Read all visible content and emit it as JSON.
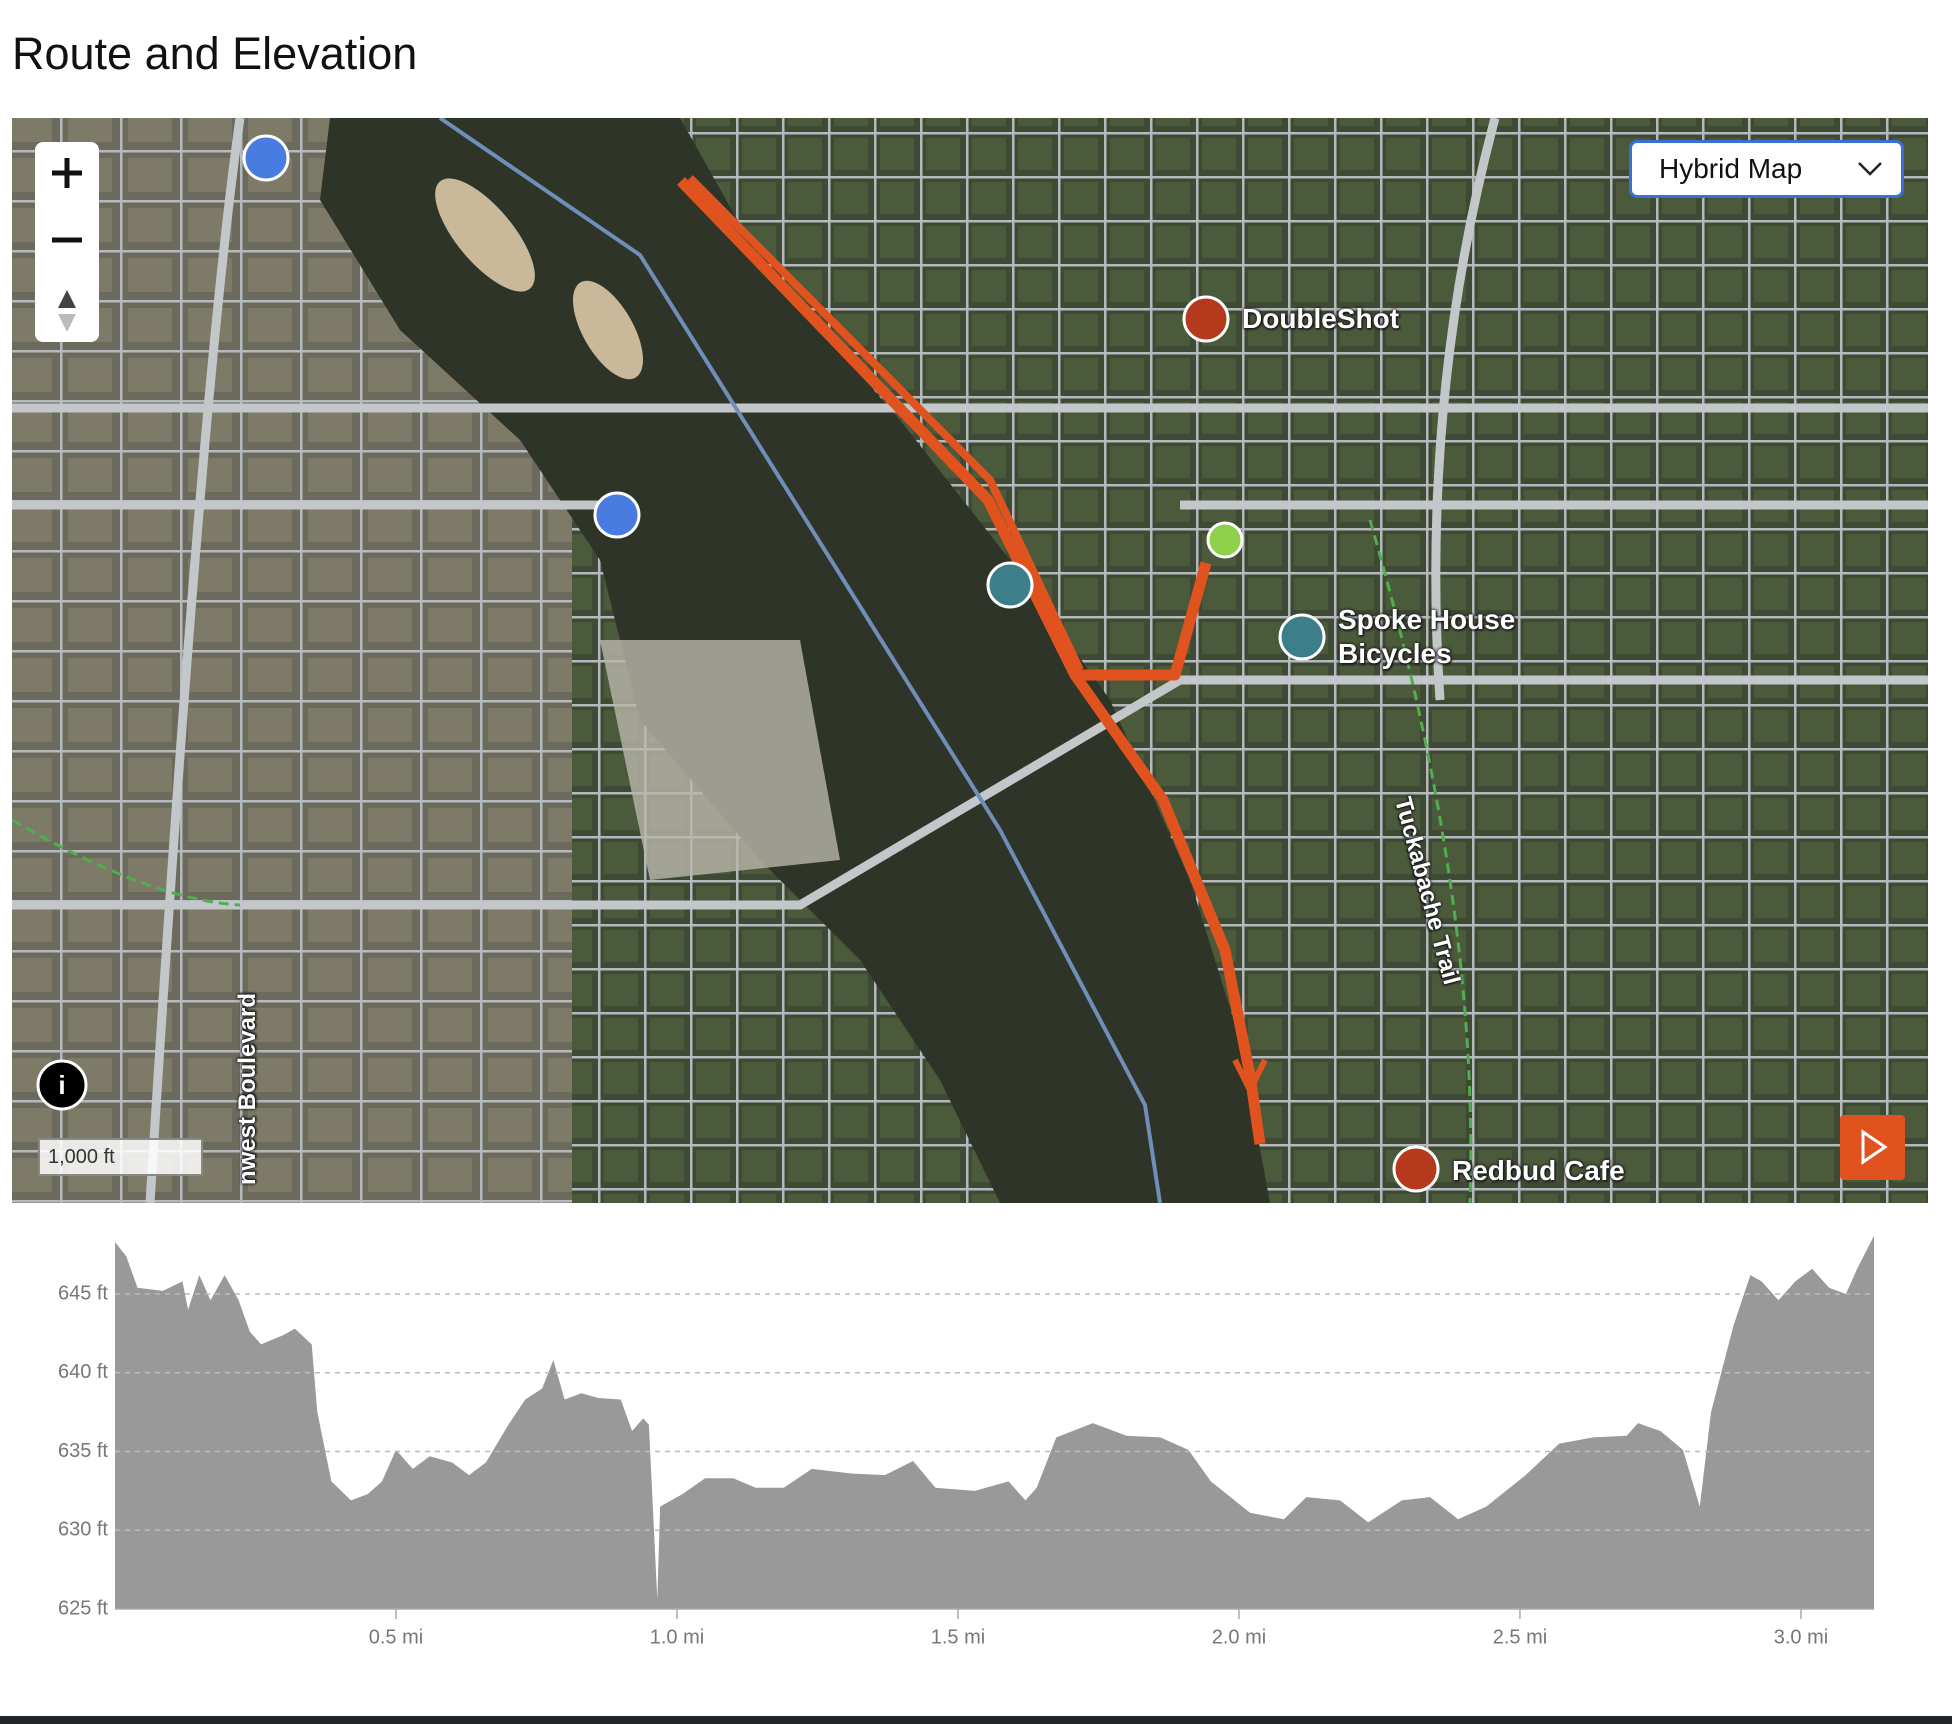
{
  "header": {
    "title": "Route and Elevation"
  },
  "map": {
    "map_type": "Hybrid Map",
    "scale": "1,000 ft",
    "places": [
      "DoubleShot",
      "Spoke House Bicycles",
      "Redbud Cafe"
    ],
    "streets": [
      "Tuckabache Trail",
      "nwest Boulevard"
    ]
  },
  "chart_data": {
    "type": "area",
    "color": "#999999",
    "x": [
      0,
      0.02,
      0.04,
      0.085,
      0.12,
      0.13,
      0.15,
      0.17,
      0.195,
      0.22,
      0.24,
      0.26,
      0.3,
      0.32,
      0.35,
      0.36,
      0.385,
      0.42,
      0.45,
      0.475,
      0.5,
      0.53,
      0.56,
      0.6,
      0.63,
      0.66,
      0.7,
      0.73,
      0.76,
      0.78,
      0.8,
      0.83,
      0.86,
      0.9,
      0.92,
      0.94,
      0.95,
      0.965,
      0.97,
      1.01,
      1.05,
      1.1,
      1.14,
      1.19,
      1.24,
      1.31,
      1.37,
      1.42,
      1.46,
      1.53,
      1.59,
      1.62,
      1.64,
      1.675,
      1.74,
      1.8,
      1.86,
      1.91,
      1.95,
      2.02,
      2.08,
      2.12,
      2.18,
      2.23,
      2.29,
      2.34,
      2.39,
      2.44,
      2.51,
      2.57,
      2.63,
      2.69,
      2.71,
      2.75,
      2.79,
      2.82,
      2.84,
      2.88,
      2.91,
      2.93,
      2.96,
      2.99,
      3.02,
      3.05,
      3.08,
      3.1,
      3.13
    ],
    "values": [
      648.3,
      647.4,
      645.4,
      645.2,
      645.8,
      644.0,
      646.2,
      644.6,
      646.2,
      644.6,
      642.6,
      641.8,
      642.4,
      642.8,
      641.8,
      637.5,
      633.1,
      631.9,
      632.3,
      633.1,
      635.1,
      633.9,
      634.7,
      634.3,
      633.5,
      634.3,
      636.7,
      638.3,
      639.0,
      640.8,
      638.3,
      638.7,
      638.4,
      638.3,
      636.3,
      637.1,
      636.7,
      625.6,
      631.5,
      632.3,
      633.3,
      633.3,
      632.7,
      632.7,
      633.9,
      633.6,
      633.5,
      634.4,
      632.7,
      632.5,
      633.1,
      631.9,
      632.7,
      635.9,
      636.8,
      636.0,
      635.9,
      635.1,
      633.1,
      631.1,
      630.7,
      632.1,
      631.9,
      630.5,
      631.9,
      632.1,
      630.7,
      631.5,
      633.5,
      635.5,
      635.9,
      636.0,
      636.8,
      636.3,
      635.1,
      631.5,
      637.5,
      643.0,
      646.2,
      645.8,
      644.6,
      645.8,
      646.6,
      645.4,
      645.0,
      646.6,
      648.7
    ],
    "xlim": [
      0,
      3.13
    ],
    "ylim": [
      625,
      649
    ],
    "xticks": [
      {
        "value": 0.5,
        "label": "0.5 mi"
      },
      {
        "value": 1.0,
        "label": "1.0 mi"
      },
      {
        "value": 1.5,
        "label": "1.5 mi"
      },
      {
        "value": 2.0,
        "label": "2.0 mi"
      },
      {
        "value": 2.5,
        "label": "2.5 mi"
      },
      {
        "value": 3.0,
        "label": "3.0 mi"
      }
    ],
    "yticks": [
      {
        "value": 625,
        "label": "625 ft"
      },
      {
        "value": 630,
        "label": "630 ft"
      },
      {
        "value": 635,
        "label": "635 ft"
      },
      {
        "value": 640,
        "label": "640 ft"
      },
      {
        "value": 645,
        "label": "645 ft"
      }
    ],
    "grid": true
  }
}
